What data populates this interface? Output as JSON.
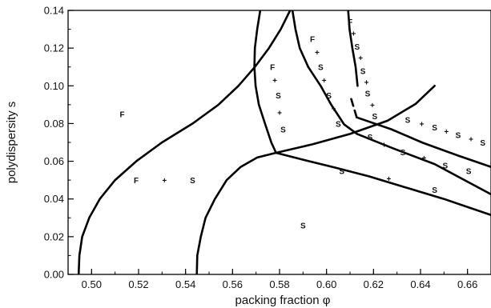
{
  "chart_data": {
    "type": "line",
    "xlabel": "packing fraction φ",
    "ylabel": "polydispersity s",
    "xlim": [
      0.49,
      0.67
    ],
    "ylim": [
      0.0,
      0.14
    ],
    "xticks": [
      "0.50",
      "0.52",
      "0.54",
      "0.56",
      "0.58",
      "0.60",
      "0.62",
      "0.64",
      "0.66"
    ],
    "yticks": [
      "0.00",
      "0.02",
      "0.04",
      "0.06",
      "0.08",
      "0.10",
      "0.12",
      "0.14"
    ],
    "grid": false,
    "boundaries": [
      {
        "style": "solid",
        "points": [
          [
            0.4945,
            0.0
          ],
          [
            0.4948,
            0.01
          ],
          [
            0.496,
            0.02
          ],
          [
            0.499,
            0.03
          ],
          [
            0.5035,
            0.04
          ],
          [
            0.51,
            0.05
          ],
          [
            0.519,
            0.06
          ],
          [
            0.53,
            0.07
          ],
          [
            0.543,
            0.08
          ],
          [
            0.554,
            0.09
          ],
          [
            0.5625,
            0.1
          ],
          [
            0.5695,
            0.11
          ],
          [
            0.5755,
            0.12
          ],
          [
            0.5805,
            0.13
          ],
          [
            0.5845,
            0.14
          ]
        ]
      },
      {
        "style": "solid",
        "points": [
          [
            0.5448,
            0.0
          ],
          [
            0.545,
            0.01
          ],
          [
            0.5465,
            0.02
          ],
          [
            0.5485,
            0.03
          ],
          [
            0.5525,
            0.04
          ],
          [
            0.5575,
            0.05
          ],
          [
            0.5635,
            0.057
          ],
          [
            0.5705,
            0.062
          ],
          [
            0.5785,
            0.0645
          ]
        ]
      },
      {
        "style": "solid",
        "points": [
          [
            0.5718,
            0.14
          ],
          [
            0.5705,
            0.13
          ],
          [
            0.5695,
            0.12
          ],
          [
            0.5693,
            0.11
          ],
          [
            0.5698,
            0.1
          ],
          [
            0.5712,
            0.09
          ],
          [
            0.5738,
            0.08
          ],
          [
            0.5765,
            0.07
          ],
          [
            0.5785,
            0.0645
          ],
          [
            0.591,
            0.0605
          ],
          [
            0.604,
            0.0565
          ],
          [
            0.618,
            0.052
          ],
          [
            0.634,
            0.046
          ],
          [
            0.65,
            0.04
          ],
          [
            0.67,
            0.0315
          ]
        ]
      },
      {
        "style": "solid",
        "points": [
          [
            0.5785,
            0.0645
          ],
          [
            0.594,
            0.069
          ],
          [
            0.61,
            0.0745
          ],
          [
            0.626,
            0.0815
          ],
          [
            0.638,
            0.0905
          ],
          [
            0.646,
            0.1
          ]
        ]
      },
      {
        "style": "solid",
        "points": [
          [
            0.5855,
            0.14
          ],
          [
            0.5868,
            0.13
          ],
          [
            0.5886,
            0.12
          ],
          [
            0.5922,
            0.11
          ],
          [
            0.5975,
            0.1
          ],
          [
            0.602,
            0.09
          ],
          [
            0.6075,
            0.0795
          ],
          [
            0.613,
            0.0745
          ],
          [
            0.628,
            0.067
          ],
          [
            0.646,
            0.0585
          ],
          [
            0.67,
            0.0425
          ]
        ]
      },
      {
        "style": "solid",
        "points": [
          [
            0.6128,
            0.0833
          ],
          [
            0.6275,
            0.077
          ],
          [
            0.641,
            0.0698
          ],
          [
            0.656,
            0.063
          ],
          [
            0.67,
            0.057
          ]
        ]
      },
      {
        "style": "dashed",
        "points": [
          [
            0.6105,
            0.093
          ],
          [
            0.6128,
            0.0835
          ]
        ]
      },
      {
        "style": "solid",
        "points": [
          [
            0.6092,
            0.14
          ],
          [
            0.6098,
            0.13
          ],
          [
            0.611,
            0.12
          ],
          [
            0.6124,
            0.11
          ],
          [
            0.6132,
            0.1
          ]
        ]
      }
    ],
    "annotations": [
      {
        "text": "F",
        "x": 0.513,
        "y": 0.085
      },
      {
        "text": "F",
        "x": 0.519,
        "y": 0.05
      },
      {
        "text": "+",
        "x": 0.531,
        "y": 0.05
      },
      {
        "text": "S",
        "x": 0.543,
        "y": 0.05
      },
      {
        "text": "S",
        "x": 0.59,
        "y": 0.026
      },
      {
        "text": "F",
        "x": 0.577,
        "y": 0.11
      },
      {
        "text": "+",
        "x": 0.578,
        "y": 0.103
      },
      {
        "text": "S",
        "x": 0.5795,
        "y": 0.095
      },
      {
        "text": "+",
        "x": 0.58,
        "y": 0.086
      },
      {
        "text": "S",
        "x": 0.5815,
        "y": 0.077
      },
      {
        "text": "F",
        "x": 0.594,
        "y": 0.125
      },
      {
        "text": "+",
        "x": 0.596,
        "y": 0.118
      },
      {
        "text": "S",
        "x": 0.5975,
        "y": 0.11
      },
      {
        "text": "+",
        "x": 0.599,
        "y": 0.103
      },
      {
        "text": "S",
        "x": 0.601,
        "y": 0.095
      },
      {
        "text": "+",
        "x": 0.603,
        "y": 0.088
      },
      {
        "text": "S",
        "x": 0.605,
        "y": 0.08
      },
      {
        "text": "F",
        "x": 0.61,
        "y": 0.134
      },
      {
        "text": "+",
        "x": 0.6115,
        "y": 0.128
      },
      {
        "text": "S",
        "x": 0.613,
        "y": 0.121
      },
      {
        "text": "+",
        "x": 0.6145,
        "y": 0.115
      },
      {
        "text": "S",
        "x": 0.6155,
        "y": 0.108
      },
      {
        "text": "+",
        "x": 0.617,
        "y": 0.102
      },
      {
        "text": "S",
        "x": 0.6175,
        "y": 0.096
      },
      {
        "text": "+",
        "x": 0.6195,
        "y": 0.09
      },
      {
        "text": "S",
        "x": 0.6205,
        "y": 0.084
      },
      {
        "text": "S",
        "x": 0.6345,
        "y": 0.082
      },
      {
        "text": "+",
        "x": 0.6405,
        "y": 0.08
      },
      {
        "text": "S",
        "x": 0.646,
        "y": 0.078
      },
      {
        "text": "+",
        "x": 0.651,
        "y": 0.076
      },
      {
        "text": "S",
        "x": 0.656,
        "y": 0.074
      },
      {
        "text": "+",
        "x": 0.6615,
        "y": 0.072
      },
      {
        "text": "S",
        "x": 0.6665,
        "y": 0.07
      },
      {
        "text": "S",
        "x": 0.6185,
        "y": 0.073
      },
      {
        "text": "+",
        "x": 0.6245,
        "y": 0.069
      },
      {
        "text": "S",
        "x": 0.6325,
        "y": 0.065
      },
      {
        "text": "+",
        "x": 0.6415,
        "y": 0.062
      },
      {
        "text": "S",
        "x": 0.6505,
        "y": 0.058
      },
      {
        "text": "S",
        "x": 0.6605,
        "y": 0.055
      },
      {
        "text": "S",
        "x": 0.6065,
        "y": 0.055
      },
      {
        "text": "+",
        "x": 0.6265,
        "y": 0.051
      },
      {
        "text": "S",
        "x": 0.646,
        "y": 0.045
      }
    ]
  }
}
